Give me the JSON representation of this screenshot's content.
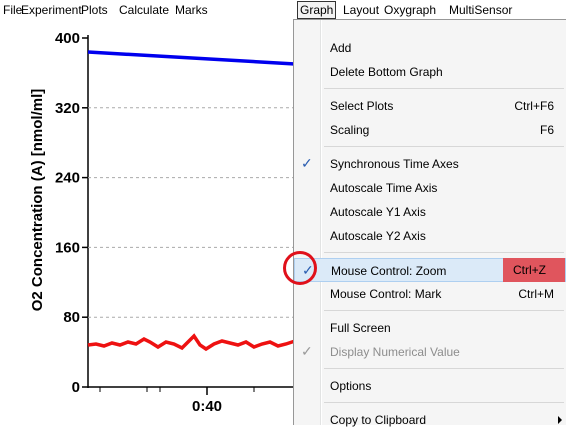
{
  "menubar": {
    "items": [
      "File",
      "Experiment",
      "Plots",
      "Calculate",
      "Marks",
      "Graph",
      "Layout",
      "Oxygraph",
      "MultiSensor"
    ],
    "active": 5
  },
  "chart": {
    "y_label": "O2 Concentration (A) [nmol/ml]",
    "yticks": [
      0,
      80,
      160,
      240,
      320,
      400
    ],
    "xticks": [
      "0:40"
    ]
  },
  "menu": {
    "groups": [
      [
        {
          "label": "Add"
        },
        {
          "label": "Delete Bottom Graph"
        }
      ],
      [
        {
          "label": "Select Plots",
          "shortcut": "Ctrl+F6"
        },
        {
          "label": "Scaling",
          "shortcut": "F6"
        }
      ],
      [
        {
          "label": "Synchronous Time Axes",
          "checked": true
        },
        {
          "label": "Autoscale Time Axis"
        },
        {
          "label": "Autoscale Y1 Axis"
        },
        {
          "label": "Autoscale Y2 Axis"
        }
      ],
      [
        {
          "label": "Mouse Control: Zoom",
          "shortcut": "Ctrl+Z",
          "checked": true,
          "highlighted": true
        },
        {
          "label": "Mouse Control: Mark",
          "shortcut": "Ctrl+M"
        }
      ],
      [
        {
          "label": "Full Screen"
        },
        {
          "label": "Display Numerical Value",
          "checked": true,
          "disabled": true
        }
      ],
      [
        {
          "label": "Options"
        }
      ],
      [
        {
          "label": "Copy to Clipboard",
          "submenu": true
        }
      ]
    ]
  }
}
